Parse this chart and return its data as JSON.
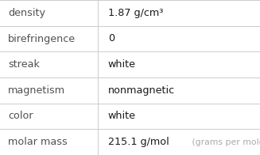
{
  "rows": [
    {
      "label": "density",
      "value": "1.87 g/cm³",
      "value2": null,
      "value2_color": null
    },
    {
      "label": "birefringence",
      "value": "0",
      "value2": null,
      "value2_color": null
    },
    {
      "label": "streak",
      "value": "white",
      "value2": null,
      "value2_color": null
    },
    {
      "label": "magnetism",
      "value": "nonmagnetic",
      "value2": null,
      "value2_color": null
    },
    {
      "label": "color",
      "value": "white",
      "value2": null,
      "value2_color": null
    },
    {
      "label": "molar mass",
      "value": "215.1 g/mol",
      "value2": " (grams per mole)",
      "value2_color": "#aaaaaa"
    }
  ],
  "col_split": 0.375,
  "bg_color": "#ffffff",
  "label_color": "#505050",
  "value_color": "#1a1a1a",
  "line_color": "#cccccc",
  "label_fontsize": 9.2,
  "value_fontsize": 9.2,
  "gray_fontsize": 7.8
}
